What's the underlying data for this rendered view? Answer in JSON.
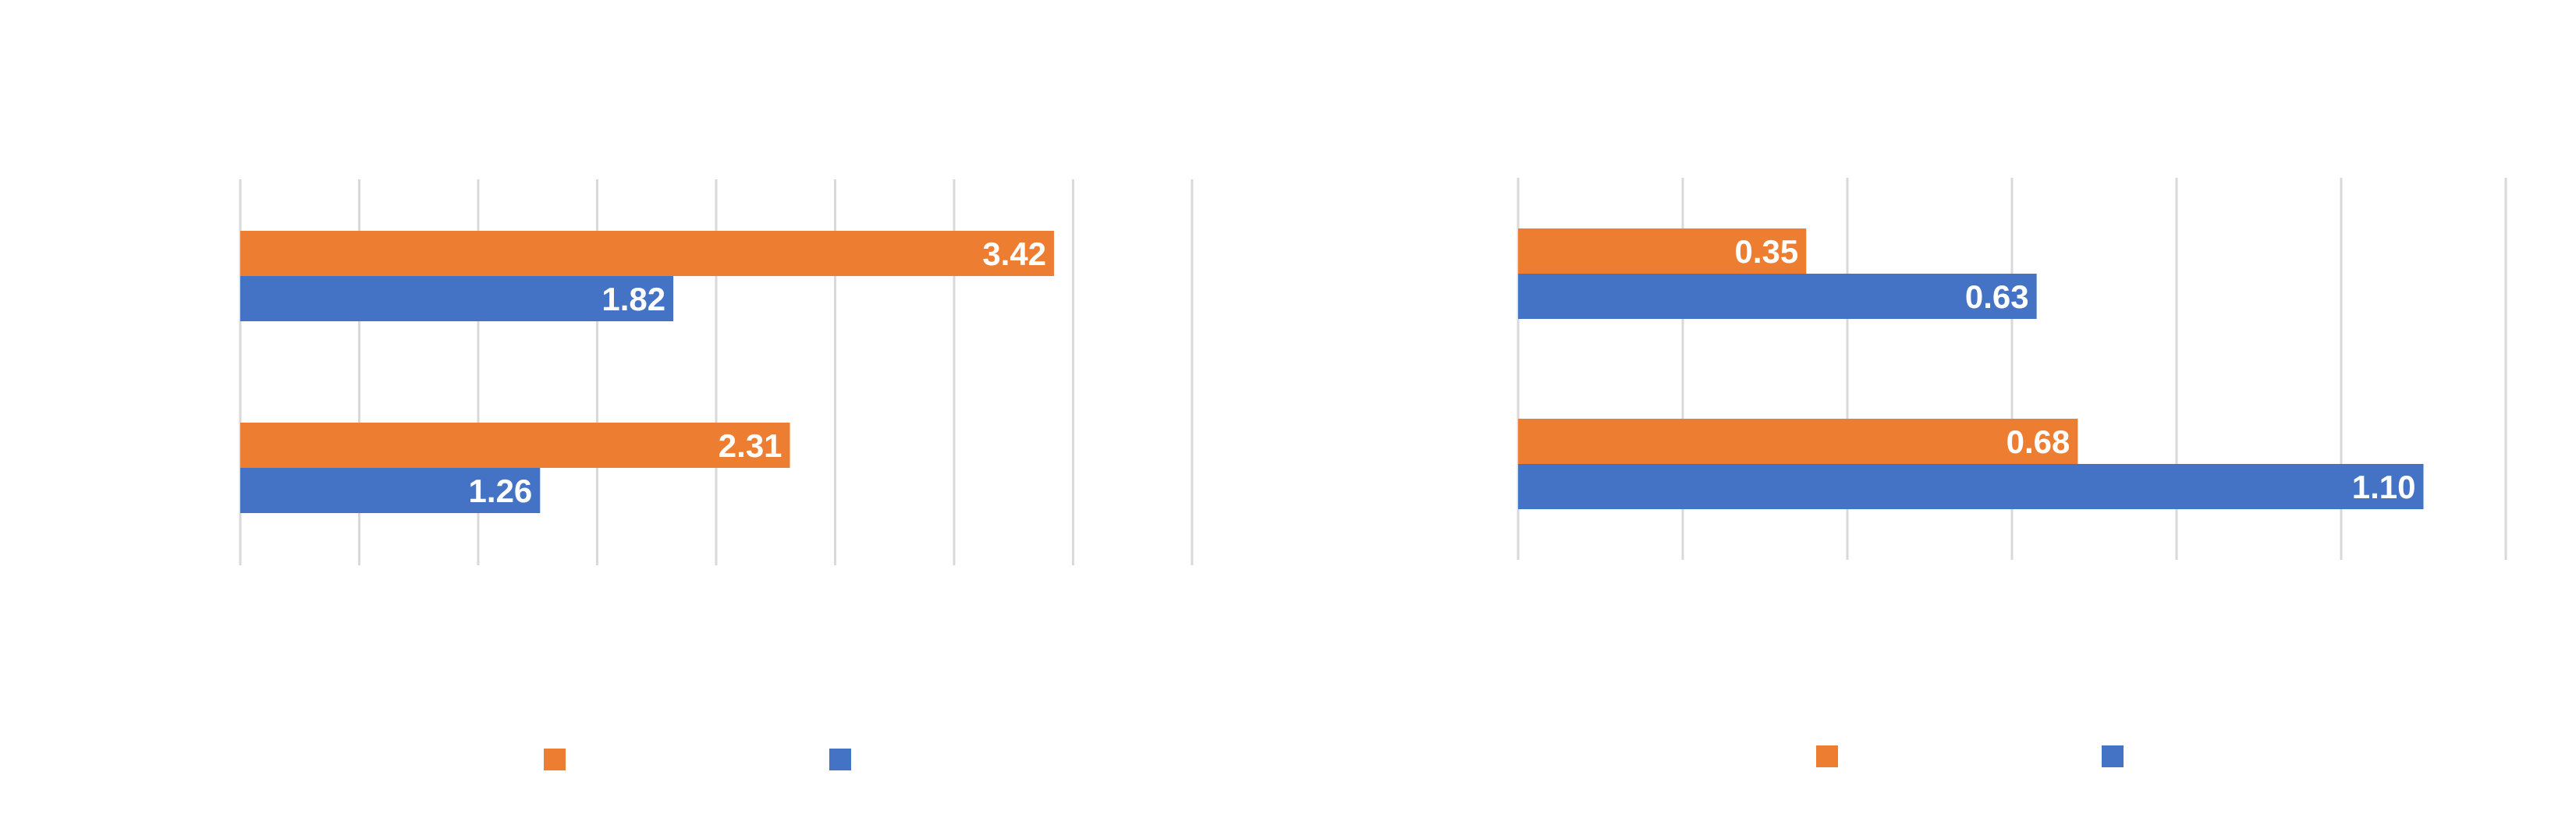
{
  "colors": {
    "series_a": "#ED7D31",
    "series_b": "#4472C4",
    "grid": "#D9D9D9"
  },
  "chart_data": [
    {
      "type": "bar",
      "orientation": "horizontal",
      "categories": [
        "",
        ""
      ],
      "series": [
        {
          "color": "#ED7D31",
          "values": [
            3.42,
            2.31
          ]
        },
        {
          "color": "#4472C4",
          "values": [
            1.82,
            1.26
          ]
        }
      ],
      "xlim": [
        0,
        4.0
      ],
      "grid": true,
      "legend": "bottom",
      "title": "",
      "xlabel": "",
      "ylabel": ""
    },
    {
      "type": "bar",
      "orientation": "horizontal",
      "categories": [
        "",
        ""
      ],
      "series": [
        {
          "color": "#ED7D31",
          "values": [
            0.35,
            0.68
          ]
        },
        {
          "color": "#4472C4",
          "values": [
            0.63,
            1.1
          ]
        }
      ],
      "xlim": [
        0,
        1.2
      ],
      "grid": true,
      "legend": "bottom",
      "title": "",
      "xlabel": "",
      "ylabel": ""
    }
  ]
}
